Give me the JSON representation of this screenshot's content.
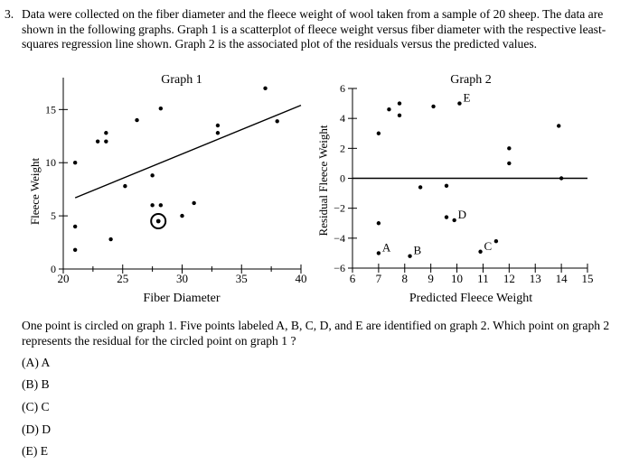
{
  "question": {
    "number": "3.",
    "stem": "Data were collected on the fiber diameter and the fleece weight of wool taken from a sample of 20 sheep. The data are shown in the following graphs. Graph 1 is a scatterplot of fleece weight versus fiber diameter with the respective least-squares regression line shown. Graph 2 is the associated plot of the residuals versus the predicted values.",
    "prompt": "One point is circled on graph 1. Five points labeled A, B, C, D, and E are identified on graph 2. Which point on graph 2 represents the residual for the circled point on graph 1 ?",
    "choices": [
      "(A)  A",
      "(B)  B",
      "(C)  C",
      "(D)  D",
      "(E)  E"
    ]
  },
  "chart_data": [
    {
      "type": "scatter",
      "title": "Graph 1",
      "xlabel": "Fiber Diameter",
      "ylabel": "Fleece Weight",
      "xlim": [
        20,
        40
      ],
      "ylim": [
        0,
        18
      ],
      "xticks": [
        20,
        25,
        30,
        35,
        40
      ],
      "yticks": [
        0,
        5,
        10,
        15
      ],
      "xtick_labels": [
        "20",
        "25",
        "30",
        "35",
        "40"
      ],
      "ytick_labels": [
        "0",
        "5",
        "10",
        "15"
      ],
      "grid": false,
      "points": [
        {
          "x": 21.0,
          "y": 10.0
        },
        {
          "x": 21.0,
          "y": 4.0
        },
        {
          "x": 21.0,
          "y": 1.8
        },
        {
          "x": 22.9,
          "y": 12.0
        },
        {
          "x": 23.6,
          "y": 12.0
        },
        {
          "x": 23.6,
          "y": 12.8
        },
        {
          "x": 24.0,
          "y": 2.8
        },
        {
          "x": 25.2,
          "y": 7.8
        },
        {
          "x": 26.2,
          "y": 14.0
        },
        {
          "x": 27.5,
          "y": 8.8
        },
        {
          "x": 27.5,
          "y": 6.0
        },
        {
          "x": 28.2,
          "y": 6.0
        },
        {
          "x": 28.2,
          "y": 15.1
        },
        {
          "x": 30.0,
          "y": 5.0
        },
        {
          "x": 31.0,
          "y": 6.2
        },
        {
          "x": 33.0,
          "y": 13.5
        },
        {
          "x": 33.0,
          "y": 12.8
        },
        {
          "x": 37.0,
          "y": 17.0
        },
        {
          "x": 38.0,
          "y": 13.9
        },
        {
          "x": 28.0,
          "y": 4.5,
          "circled": true
        }
      ],
      "regression_line": {
        "x": [
          21.0,
          40.0
        ],
        "y": [
          6.7,
          15.4
        ]
      }
    },
    {
      "type": "scatter",
      "title": "Graph 2",
      "xlabel": "Predicted Fleece Weight",
      "ylabel": "Residual Fleece Weight",
      "xlim": [
        6,
        15
      ],
      "ylim": [
        -6,
        6
      ],
      "xticks": [
        6,
        7,
        8,
        9,
        10,
        11,
        12,
        13,
        14,
        15
      ],
      "yticks": [
        -6,
        -4,
        -2,
        0,
        2,
        4,
        6
      ],
      "xtick_labels": [
        "6",
        "7",
        "8",
        "9",
        "10",
        "11",
        "12",
        "13",
        "14",
        "15"
      ],
      "ytick_labels": [
        "−6",
        "−4",
        "−2",
        "0",
        "2",
        "4",
        "6"
      ],
      "grid": false,
      "zero_line": 0,
      "points": [
        {
          "x": 7.0,
          "y": 3.0
        },
        {
          "x": 7.0,
          "y": -3.0
        },
        {
          "x": 7.4,
          "y": 4.6
        },
        {
          "x": 7.8,
          "y": 5.0
        },
        {
          "x": 7.8,
          "y": 4.2
        },
        {
          "x": 8.6,
          "y": -0.6
        },
        {
          "x": 9.1,
          "y": 4.8
        },
        {
          "x": 9.6,
          "y": -0.5
        },
        {
          "x": 9.6,
          "y": -2.6
        },
        {
          "x": 11.5,
          "y": -4.2
        },
        {
          "x": 12.0,
          "y": 2.0
        },
        {
          "x": 12.0,
          "y": 1.0
        },
        {
          "x": 13.9,
          "y": 3.5
        },
        {
          "x": 14.0,
          "y": 0.0
        }
      ],
      "labeled_points": [
        {
          "label": "A",
          "x": 7.0,
          "y": -5.0
        },
        {
          "label": "B",
          "x": 8.2,
          "y": -5.2
        },
        {
          "label": "C",
          "x": 10.9,
          "y": -4.9
        },
        {
          "label": "D",
          "x": 9.9,
          "y": -2.8
        },
        {
          "label": "E",
          "x": 10.1,
          "y": 5.0
        }
      ]
    }
  ]
}
